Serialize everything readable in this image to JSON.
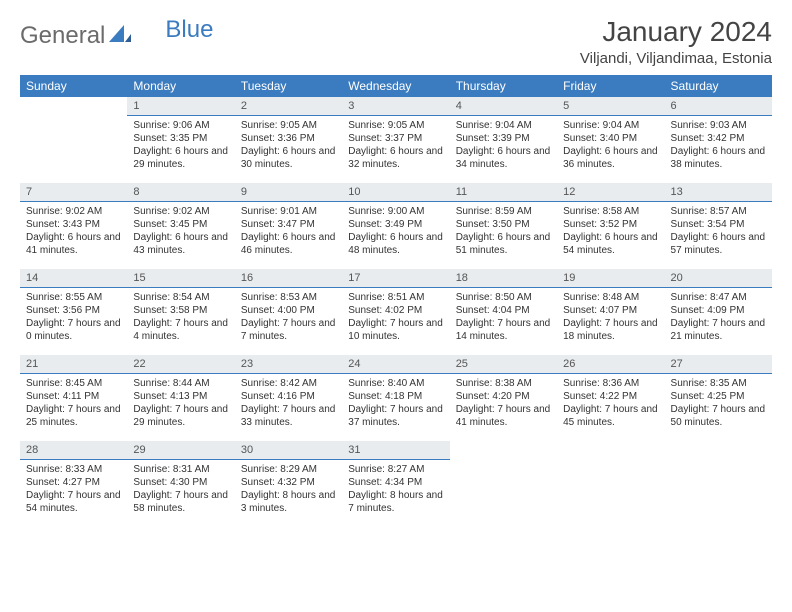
{
  "logo": {
    "text1": "General",
    "text2": "Blue"
  },
  "title": "January 2024",
  "location": "Viljandi, Viljandimaa, Estonia",
  "colors": {
    "header_bg": "#3b7bbf",
    "header_fg": "#ffffff",
    "daynum_bg": "#e8ecef",
    "daynum_border": "#3b7bbf",
    "body_bg": "#ffffff",
    "text": "#333333"
  },
  "dayHeaders": [
    "Sunday",
    "Monday",
    "Tuesday",
    "Wednesday",
    "Thursday",
    "Friday",
    "Saturday"
  ],
  "startWeekday": 1,
  "daysInMonth": 31,
  "days": {
    "1": {
      "sunrise": "9:06 AM",
      "sunset": "3:35 PM",
      "daylight": "6 hours and 29 minutes."
    },
    "2": {
      "sunrise": "9:05 AM",
      "sunset": "3:36 PM",
      "daylight": "6 hours and 30 minutes."
    },
    "3": {
      "sunrise": "9:05 AM",
      "sunset": "3:37 PM",
      "daylight": "6 hours and 32 minutes."
    },
    "4": {
      "sunrise": "9:04 AM",
      "sunset": "3:39 PM",
      "daylight": "6 hours and 34 minutes."
    },
    "5": {
      "sunrise": "9:04 AM",
      "sunset": "3:40 PM",
      "daylight": "6 hours and 36 minutes."
    },
    "6": {
      "sunrise": "9:03 AM",
      "sunset": "3:42 PM",
      "daylight": "6 hours and 38 minutes."
    },
    "7": {
      "sunrise": "9:02 AM",
      "sunset": "3:43 PM",
      "daylight": "6 hours and 41 minutes."
    },
    "8": {
      "sunrise": "9:02 AM",
      "sunset": "3:45 PM",
      "daylight": "6 hours and 43 minutes."
    },
    "9": {
      "sunrise": "9:01 AM",
      "sunset": "3:47 PM",
      "daylight": "6 hours and 46 minutes."
    },
    "10": {
      "sunrise": "9:00 AM",
      "sunset": "3:49 PM",
      "daylight": "6 hours and 48 minutes."
    },
    "11": {
      "sunrise": "8:59 AM",
      "sunset": "3:50 PM",
      "daylight": "6 hours and 51 minutes."
    },
    "12": {
      "sunrise": "8:58 AM",
      "sunset": "3:52 PM",
      "daylight": "6 hours and 54 minutes."
    },
    "13": {
      "sunrise": "8:57 AM",
      "sunset": "3:54 PM",
      "daylight": "6 hours and 57 minutes."
    },
    "14": {
      "sunrise": "8:55 AM",
      "sunset": "3:56 PM",
      "daylight": "7 hours and 0 minutes."
    },
    "15": {
      "sunrise": "8:54 AM",
      "sunset": "3:58 PM",
      "daylight": "7 hours and 4 minutes."
    },
    "16": {
      "sunrise": "8:53 AM",
      "sunset": "4:00 PM",
      "daylight": "7 hours and 7 minutes."
    },
    "17": {
      "sunrise": "8:51 AM",
      "sunset": "4:02 PM",
      "daylight": "7 hours and 10 minutes."
    },
    "18": {
      "sunrise": "8:50 AM",
      "sunset": "4:04 PM",
      "daylight": "7 hours and 14 minutes."
    },
    "19": {
      "sunrise": "8:48 AM",
      "sunset": "4:07 PM",
      "daylight": "7 hours and 18 minutes."
    },
    "20": {
      "sunrise": "8:47 AM",
      "sunset": "4:09 PM",
      "daylight": "7 hours and 21 minutes."
    },
    "21": {
      "sunrise": "8:45 AM",
      "sunset": "4:11 PM",
      "daylight": "7 hours and 25 minutes."
    },
    "22": {
      "sunrise": "8:44 AM",
      "sunset": "4:13 PM",
      "daylight": "7 hours and 29 minutes."
    },
    "23": {
      "sunrise": "8:42 AM",
      "sunset": "4:16 PM",
      "daylight": "7 hours and 33 minutes."
    },
    "24": {
      "sunrise": "8:40 AM",
      "sunset": "4:18 PM",
      "daylight": "7 hours and 37 minutes."
    },
    "25": {
      "sunrise": "8:38 AM",
      "sunset": "4:20 PM",
      "daylight": "7 hours and 41 minutes."
    },
    "26": {
      "sunrise": "8:36 AM",
      "sunset": "4:22 PM",
      "daylight": "7 hours and 45 minutes."
    },
    "27": {
      "sunrise": "8:35 AM",
      "sunset": "4:25 PM",
      "daylight": "7 hours and 50 minutes."
    },
    "28": {
      "sunrise": "8:33 AM",
      "sunset": "4:27 PM",
      "daylight": "7 hours and 54 minutes."
    },
    "29": {
      "sunrise": "8:31 AM",
      "sunset": "4:30 PM",
      "daylight": "7 hours and 58 minutes."
    },
    "30": {
      "sunrise": "8:29 AM",
      "sunset": "4:32 PM",
      "daylight": "8 hours and 3 minutes."
    },
    "31": {
      "sunrise": "8:27 AM",
      "sunset": "4:34 PM",
      "daylight": "8 hours and 7 minutes."
    }
  },
  "labels": {
    "sunrise": "Sunrise:",
    "sunset": "Sunset:",
    "daylight": "Daylight:"
  }
}
